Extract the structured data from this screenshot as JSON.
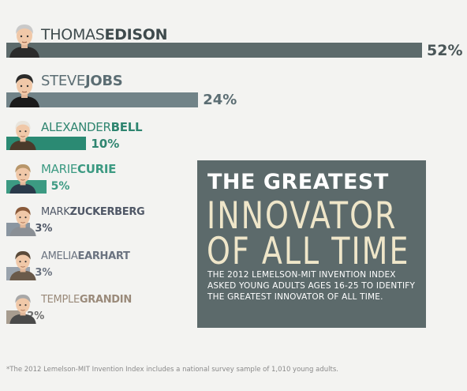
{
  "chart_data": {
    "type": "bar",
    "orientation": "horizontal",
    "categories": [
      {
        "first": "THOMAS",
        "last": "EDISON"
      },
      {
        "first": "STEVE",
        "last": "JOBS"
      },
      {
        "first": "ALEXANDER",
        "last": "BELL"
      },
      {
        "first": "MARIE",
        "last": "CURIE"
      },
      {
        "first": "MARK",
        "last": "ZUCKERBERG"
      },
      {
        "first": "AMELIA",
        "last": "EARHART"
      },
      {
        "first": "TEMPLE",
        "last": "GRANDIN"
      }
    ],
    "values": [
      52,
      24,
      10,
      5,
      3,
      3,
      2
    ],
    "value_labels": [
      "52%",
      "24%",
      "10%",
      "5%",
      "3%",
      "3%",
      "2%"
    ],
    "unit": "%",
    "bar_colors": [
      "#5c6a6b",
      "#718388",
      "#2b8a73",
      "#3c9a82",
      "#8a96a1",
      "#9aa3ad",
      "#a79c8f"
    ],
    "name_colors": [
      "#3e4a4c",
      "#5b6d73",
      "#2f8570",
      "#3c9a82",
      "#4f5766",
      "#6b7380",
      "#9a8a7a"
    ],
    "label_colors": [
      "#4a5658",
      "#5b6d73",
      "#2f8570",
      "#3c9a82",
      "#4f5766",
      "#6b7380",
      "#6f6f6f"
    ],
    "avatars": [
      "edison-portrait-icon",
      "jobs-portrait-icon",
      "bell-portrait-icon",
      "curie-portrait-icon",
      "zuckerberg-portrait-icon",
      "earhart-portrait-icon",
      "grandin-portrait-icon"
    ],
    "xlim": [
      0,
      52
    ],
    "grid": false,
    "legend": "none"
  },
  "promo": {
    "line1": "THE GREATEST",
    "line2": "INNOVATOR",
    "line3": "OF ALL TIME",
    "body": "THE 2012 LEMELSON-MIT INVENTION INDEX ASKED YOUNG ADULTS AGES 16-25 TO IDENTIFY THE GREATEST INNOVATOR OF ALL TIME.",
    "bg": "#5c6a6b",
    "accent": "#efe6c9"
  },
  "footnote": "*The 2012 Lemelson-MIT Invention Index includes a national survey sample of 1,010 young adults."
}
